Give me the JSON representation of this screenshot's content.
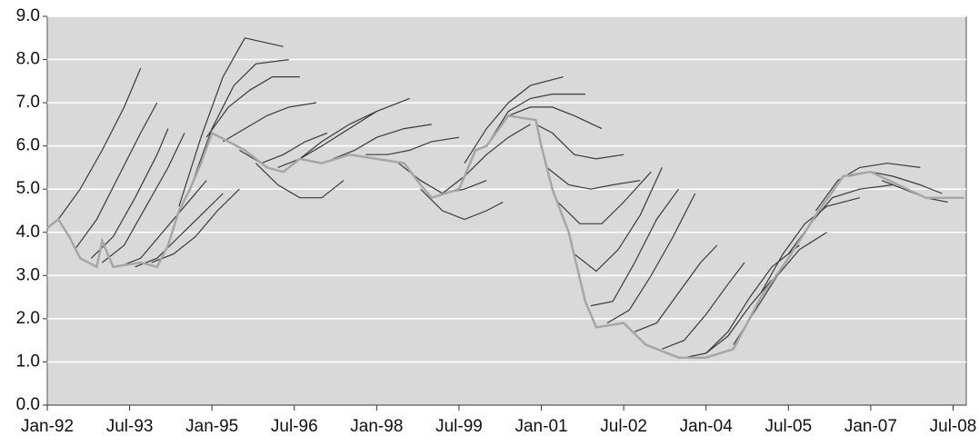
{
  "chart_data": {
    "type": "line",
    "xlim": [
      1992.0,
      2008.74
    ],
    "ylim": [
      0,
      9
    ],
    "xticks": [
      {
        "value": 1992.0,
        "label": "Jan-92"
      },
      {
        "value": 1993.5,
        "label": "Jul-93"
      },
      {
        "value": 1995.0,
        "label": "Jan-95"
      },
      {
        "value": 1996.5,
        "label": "Jul-96"
      },
      {
        "value": 1998.0,
        "label": "Jan-98"
      },
      {
        "value": 1999.5,
        "label": "Jul-99"
      },
      {
        "value": 2001.0,
        "label": "Jan-01"
      },
      {
        "value": 2002.5,
        "label": "Jul-02"
      },
      {
        "value": 2004.0,
        "label": "Jan-04"
      },
      {
        "value": 2005.5,
        "label": "Jul-05"
      },
      {
        "value": 2007.0,
        "label": "Jan-07"
      },
      {
        "value": 2008.5,
        "label": "Jul-08"
      }
    ],
    "yticks": [
      {
        "value": 0,
        "label": "0.0"
      },
      {
        "value": 1,
        "label": "1.0"
      },
      {
        "value": 2,
        "label": "2.0"
      },
      {
        "value": 3,
        "label": "3.0"
      },
      {
        "value": 4,
        "label": "4.0"
      },
      {
        "value": 5,
        "label": "5.0"
      },
      {
        "value": 6,
        "label": "6.0"
      },
      {
        "value": 7,
        "label": "7.0"
      },
      {
        "value": 8,
        "label": "8.0"
      },
      {
        "value": 9,
        "label": "9.0"
      }
    ],
    "grid": true,
    "series": [
      {
        "color": "#3a3a3a",
        "x": [
          1992.2,
          1992.6,
          1993.0,
          1993.4,
          1993.7
        ],
        "values": [
          4.3,
          5.0,
          5.9,
          6.9,
          7.8
        ]
      },
      {
        "color": "#3a3a3a",
        "x": [
          1992.5,
          1992.9,
          1993.3,
          1993.7,
          1994.0
        ],
        "values": [
          3.6,
          4.3,
          5.3,
          6.3,
          7.0
        ]
      },
      {
        "color": "#3a3a3a",
        "x": [
          1992.8,
          1993.2,
          1993.6,
          1994.0,
          1994.2
        ],
        "values": [
          3.4,
          3.9,
          4.8,
          5.8,
          6.4
        ]
      },
      {
        "color": "#3a3a3a",
        "x": [
          1993.0,
          1993.4,
          1993.8,
          1994.2,
          1994.5
        ],
        "values": [
          3.3,
          3.7,
          4.6,
          5.5,
          6.3
        ]
      },
      {
        "color": "#3a3a3a",
        "x": [
          1993.3,
          1993.7,
          1994.1,
          1994.5,
          1994.9
        ],
        "values": [
          3.2,
          3.4,
          4.0,
          4.6,
          5.2
        ]
      },
      {
        "color": "#3a3a3a",
        "x": [
          1993.6,
          1994.0,
          1994.4,
          1994.8,
          1995.2
        ],
        "values": [
          3.2,
          3.4,
          3.9,
          4.4,
          4.9
        ]
      },
      {
        "color": "#3a3a3a",
        "x": [
          1993.9,
          1994.3,
          1994.7,
          1995.1,
          1995.5
        ],
        "values": [
          3.3,
          3.5,
          3.9,
          4.5,
          5.0
        ]
      },
      {
        "color": "#3a3a3a",
        "x": [
          1994.4,
          1994.8,
          1995.2,
          1995.6,
          1996.3
        ],
        "values": [
          4.6,
          6.2,
          7.6,
          8.5,
          8.3
        ]
      },
      {
        "color": "#3a3a3a",
        "x": [
          1994.6,
          1995.0,
          1995.4,
          1995.8,
          1996.4
        ],
        "values": [
          5.0,
          6.4,
          7.4,
          7.9,
          8.0
        ]
      },
      {
        "color": "#3a3a3a",
        "x": [
          1994.9,
          1995.3,
          1995.7,
          1996.1,
          1996.6
        ],
        "values": [
          6.2,
          6.9,
          7.3,
          7.6,
          7.6
        ]
      },
      {
        "color": "#3a3a3a",
        "x": [
          1995.2,
          1995.6,
          1996.0,
          1996.4,
          1996.9
        ],
        "values": [
          6.1,
          6.4,
          6.7,
          6.9,
          7.0
        ]
      },
      {
        "color": "#3a3a3a",
        "x": [
          1995.5,
          1995.9,
          1996.3,
          1996.7,
          1997.1
        ],
        "values": [
          5.9,
          5.6,
          5.8,
          6.1,
          6.3
        ]
      },
      {
        "color": "#3a3a3a",
        "x": [
          1995.8,
          1996.2,
          1996.6,
          1997.0,
          1997.4
        ],
        "values": [
          5.6,
          5.1,
          4.8,
          4.8,
          5.2
        ]
      },
      {
        "color": "#3a3a3a",
        "x": [
          1996.2,
          1996.6,
          1997.0,
          1997.5,
          1998.0
        ],
        "values": [
          5.5,
          5.7,
          6.1,
          6.5,
          6.8
        ]
      },
      {
        "color": "#3a3a3a",
        "x": [
          1996.6,
          1997.0,
          1997.5,
          1998.0,
          1998.6
        ],
        "values": [
          5.7,
          6.0,
          6.4,
          6.8,
          7.1
        ]
      },
      {
        "color": "#3a3a3a",
        "x": [
          1997.2,
          1997.6,
          1998.0,
          1998.5,
          1999.0
        ],
        "values": [
          5.7,
          5.9,
          6.2,
          6.4,
          6.5
        ]
      },
      {
        "color": "#3a3a3a",
        "x": [
          1997.8,
          1998.2,
          1998.6,
          1999.0,
          1999.5
        ],
        "values": [
          5.8,
          5.8,
          5.9,
          6.1,
          6.2
        ]
      },
      {
        "color": "#3a3a3a",
        "x": [
          1998.4,
          1998.8,
          1999.2,
          1999.6,
          2000.0
        ],
        "values": [
          5.6,
          5.2,
          4.9,
          5.0,
          5.2
        ]
      },
      {
        "color": "#3a3a3a",
        "x": [
          1998.8,
          1999.2,
          1999.6,
          2000.0,
          2000.3
        ],
        "values": [
          5.0,
          4.5,
          4.3,
          4.5,
          4.7
        ]
      },
      {
        "color": "#3a3a3a",
        "x": [
          1999.2,
          1999.6,
          2000.0,
          2000.4,
          2000.8
        ],
        "values": [
          4.9,
          5.3,
          5.8,
          6.2,
          6.5
        ]
      },
      {
        "color": "#3a3a3a",
        "x": [
          1999.6,
          2000.0,
          2000.4,
          2000.8,
          2001.4
        ],
        "values": [
          5.6,
          6.4,
          7.0,
          7.4,
          7.6
        ]
      },
      {
        "color": "#3a3a3a",
        "x": [
          2000.0,
          2000.4,
          2000.8,
          2001.2,
          2001.8
        ],
        "values": [
          6.0,
          6.8,
          7.1,
          7.2,
          7.2
        ]
      },
      {
        "color": "#3a3a3a",
        "x": [
          2000.4,
          2000.8,
          2001.2,
          2001.6,
          2002.1
        ],
        "values": [
          6.7,
          6.9,
          6.9,
          6.7,
          6.4
        ]
      },
      {
        "color": "#3a3a3a",
        "x": [
          2000.9,
          2001.2,
          2001.6,
          2002.0,
          2002.5
        ],
        "values": [
          6.5,
          6.3,
          5.8,
          5.7,
          5.8
        ]
      },
      {
        "color": "#3a3a3a",
        "x": [
          2001.1,
          2001.5,
          2001.9,
          2002.3,
          2002.8
        ],
        "values": [
          5.5,
          5.1,
          5.0,
          5.1,
          5.2
        ]
      },
      {
        "color": "#3a3a3a",
        "x": [
          2001.3,
          2001.7,
          2002.1,
          2002.5,
          2003.0
        ],
        "values": [
          4.7,
          4.2,
          4.2,
          4.7,
          5.4
        ]
      },
      {
        "color": "#3a3a3a",
        "x": [
          2001.6,
          2002.0,
          2002.4,
          2002.8,
          2003.2
        ],
        "values": [
          3.5,
          3.1,
          3.6,
          4.4,
          5.5
        ]
      },
      {
        "color": "#3a3a3a",
        "x": [
          2001.9,
          2002.3,
          2002.7,
          2003.1,
          2003.5
        ],
        "values": [
          2.3,
          2.4,
          3.3,
          4.3,
          5.0
        ]
      },
      {
        "color": "#3a3a3a",
        "x": [
          2002.2,
          2002.6,
          2003.0,
          2003.4,
          2003.8
        ],
        "values": [
          1.9,
          2.2,
          3.0,
          3.9,
          4.9
        ]
      },
      {
        "color": "#3a3a3a",
        "x": [
          2002.7,
          2003.1,
          2003.5,
          2003.9,
          2004.2
        ],
        "values": [
          1.7,
          1.9,
          2.6,
          3.3,
          3.7
        ]
      },
      {
        "color": "#3a3a3a",
        "x": [
          2003.2,
          2003.6,
          2004.0,
          2004.4,
          2004.7
        ],
        "values": [
          1.3,
          1.5,
          2.1,
          2.8,
          3.3
        ]
      },
      {
        "color": "#3a3a3a",
        "x": [
          2003.6,
          2004.0,
          2004.4,
          2004.8,
          2005.2
        ],
        "values": [
          1.1,
          1.2,
          1.6,
          2.3,
          2.9
        ]
      },
      {
        "color": "#3a3a3a",
        "x": [
          2004.0,
          2004.4,
          2004.8,
          2005.2,
          2005.7
        ],
        "values": [
          1.2,
          1.7,
          2.5,
          3.2,
          3.7
        ]
      },
      {
        "color": "#3a3a3a",
        "x": [
          2004.5,
          2004.9,
          2005.3,
          2005.7,
          2006.2
        ],
        "values": [
          1.4,
          2.2,
          3.0,
          3.6,
          4.0
        ]
      },
      {
        "color": "#3a3a3a",
        "x": [
          2005.0,
          2005.4,
          2005.8,
          2006.2,
          2006.8
        ],
        "values": [
          2.6,
          3.5,
          4.2,
          4.6,
          4.8
        ]
      },
      {
        "color": "#3a3a3a",
        "x": [
          2005.5,
          2005.9,
          2006.3,
          2006.8,
          2007.4
        ],
        "values": [
          3.5,
          4.2,
          4.8,
          5.0,
          5.1
        ]
      },
      {
        "color": "#3a3a3a",
        "x": [
          2006.0,
          2006.4,
          2006.8,
          2007.3,
          2007.9
        ],
        "values": [
          4.5,
          5.2,
          5.5,
          5.6,
          5.5
        ]
      },
      {
        "color": "#3a3a3a",
        "x": [
          2006.6,
          2007.0,
          2007.4,
          2007.9,
          2008.3
        ],
        "values": [
          5.3,
          5.4,
          5.3,
          5.1,
          4.9
        ]
      },
      {
        "color": "#3a3a3a",
        "x": [
          2007.2,
          2007.6,
          2008.0,
          2008.4
        ],
        "values": [
          5.2,
          5.0,
          4.8,
          4.7
        ]
      },
      {
        "color": "#a6a6a6",
        "x": [
          1992.0,
          1992.2,
          1992.4,
          1992.6,
          1992.9,
          1993.0,
          1993.2,
          1993.7,
          1994.0,
          1994.2,
          1994.4,
          1994.6,
          1994.8,
          1995.0,
          1995.3,
          1995.6,
          1996.0,
          1996.3,
          1996.6,
          1997.0,
          1997.5,
          1998.0,
          1998.5,
          1998.8,
          1999.0,
          1999.5,
          1999.8,
          2000.0,
          2000.4,
          2000.9,
          2001.0,
          2001.2,
          2001.5,
          2001.8,
          2002.0,
          2002.5,
          2002.9,
          2003.5,
          2004.0,
          2004.5,
          2005.0,
          2005.5,
          2006.0,
          2006.5,
          2007.0,
          2007.5,
          2008.0,
          2008.7
        ],
        "values": [
          4.1,
          4.3,
          3.9,
          3.4,
          3.2,
          3.8,
          3.2,
          3.3,
          3.2,
          3.7,
          4.5,
          5.0,
          5.6,
          6.3,
          6.1,
          5.9,
          5.5,
          5.4,
          5.7,
          5.6,
          5.8,
          5.7,
          5.6,
          5.1,
          4.8,
          5.0,
          5.9,
          6.0,
          6.7,
          6.6,
          6.0,
          5.0,
          4.0,
          2.4,
          1.8,
          1.9,
          1.4,
          1.1,
          1.1,
          1.3,
          2.5,
          3.4,
          4.4,
          5.3,
          5.4,
          5.1,
          4.8,
          4.8
        ]
      }
    ]
  }
}
